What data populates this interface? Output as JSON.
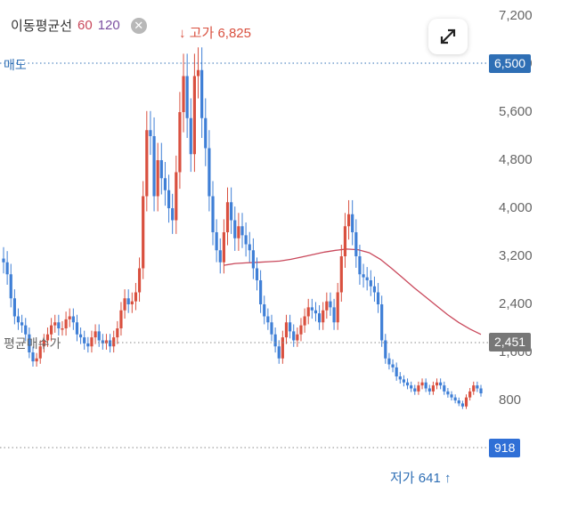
{
  "legend": {
    "title": "이동평균선",
    "ma60_label": "60",
    "ma120_label": "120"
  },
  "colors": {
    "up": "#d9503f",
    "down": "#3f7fd6",
    "ma": "#c9485b",
    "ask": "#2f6fb5",
    "avg": "#777777",
    "current": "#2f6fd6"
  },
  "icons": {
    "close": "close-icon",
    "expand": "expand-arrows-icon",
    "high_arrow": "arrow-down-icon",
    "low_arrow": "arrow-up-icon"
  },
  "annotations": {
    "high": "고가 6,825",
    "low": "저가 641"
  },
  "lines": {
    "ask_label": "매도",
    "ask_value_label": "6,500",
    "avg_label": "평균매수가",
    "avg_value_label": "2,451",
    "current_value_label": "918"
  },
  "chart_data": {
    "type": "candlestick",
    "y_ticks": [
      "7,200",
      "6,400",
      "5,600",
      "4,800",
      "4,000",
      "3,200",
      "2,400",
      "1,600",
      "800"
    ],
    "ylim": [
      450,
      7400
    ],
    "grid": false,
    "high": 6825,
    "low": 641,
    "ask_level": 6500,
    "avg_buy_price": 2451,
    "current_price": 918,
    "close_series": [
      3100,
      2900,
      2500,
      2200,
      2100,
      2050,
      1900,
      1600,
      1450,
      1500,
      1700,
      1800,
      1900,
      2050,
      2100,
      2000,
      2000,
      2150,
      2200,
      2100,
      1900,
      1850,
      1750,
      1700,
      1850,
      1950,
      1800,
      1750,
      1800,
      1700,
      1850,
      2000,
      2300,
      2500,
      2400,
      2450,
      2600,
      3000,
      4200,
      5300,
      5200,
      4200,
      4800,
      4500,
      4300,
      4000,
      3800,
      4600,
      5600,
      6200,
      5500,
      4900,
      6200,
      6300,
      5500,
      5000,
      4200,
      3600,
      3300,
      3100,
      3600,
      4100,
      3800,
      3500,
      3700,
      3550,
      3400,
      3300,
      3000,
      2800,
      2400,
      2200,
      2100,
      1900,
      1700,
      1500,
      1850,
      2100,
      1950,
      1800,
      1900,
      2050,
      2200,
      2350,
      2300,
      2250,
      2100,
      2300,
      2450,
      2350,
      2100,
      2600,
      3200,
      3700,
      3900,
      3600,
      3200,
      2900,
      2850,
      2800,
      2700,
      2600,
      2400,
      1800,
      1500,
      1400,
      1350,
      1200,
      1150,
      1100,
      1050,
      1000,
      950,
      1050,
      1100,
      1000,
      950,
      1050,
      1100,
      1050,
      950,
      900,
      850,
      800,
      750,
      700,
      850,
      950,
      1050,
      1000,
      918
    ],
    "ma60": [
      3050,
      3080,
      3090,
      3100,
      3110,
      3120,
      3150,
      3190,
      3230,
      3270,
      3300,
      3320,
      3310,
      3260,
      3150,
      3000,
      2840,
      2680,
      2530,
      2380,
      2230,
      2100,
      1990,
      1900
    ],
    "ma60_start_index": 60
  }
}
